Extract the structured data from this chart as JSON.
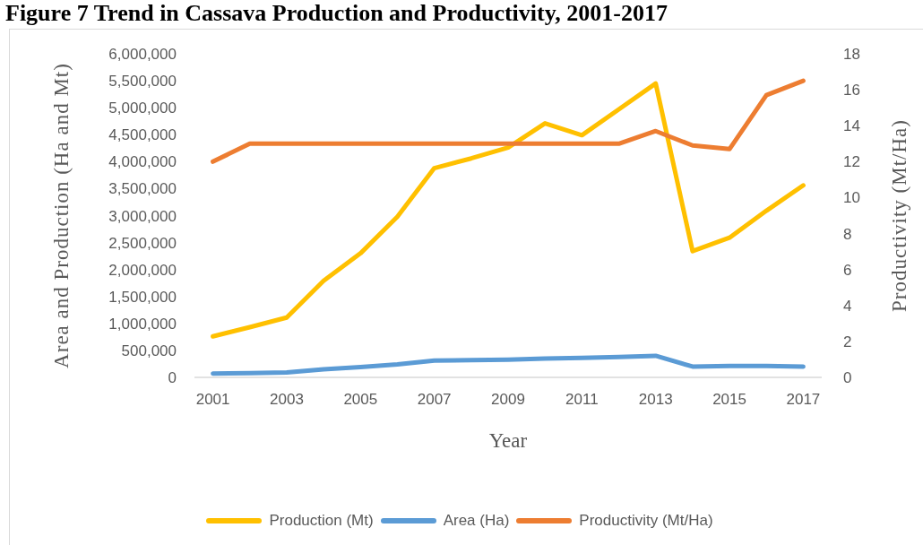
{
  "chart_data": {
    "type": "line",
    "title": "Figure 7 Trend in Cassava Production and Productivity, 2001-2017",
    "xlabel": "Year",
    "ylabel": "Area and Production (Ha and Mt)",
    "y2label": "Productivity (Mt/Ha)",
    "categories": [
      "2001",
      null,
      "2003",
      null,
      "2005",
      null,
      "2007",
      null,
      "2009",
      null,
      "2011",
      null,
      "2013",
      null,
      "2015",
      null,
      "2017"
    ],
    "series": [
      {
        "name": "Production (Mt)",
        "color": "#ffc000",
        "values": [
          760000,
          930000,
          1110000,
          1790000,
          2300000,
          2980000,
          3880000,
          4060000,
          4260000,
          4710000,
          4490000,
          4970000,
          5450000,
          2340000,
          2590000,
          3090000,
          3560000
        ]
      },
      {
        "name": "Area (Ha)",
        "color": "#5b9bd5",
        "values": [
          70000,
          80000,
          90000,
          150000,
          190000,
          240000,
          310000,
          320000,
          330000,
          350000,
          360000,
          380000,
          400000,
          200000,
          210000,
          210000,
          200000
        ]
      },
      {
        "name": "Productivity (Mt/Ha)",
        "color": "#ed7d31",
        "axis": "y2",
        "values": [
          12.0,
          13.0,
          13.0,
          13.0,
          13.0,
          13.0,
          13.0,
          13.0,
          13.0,
          13.0,
          13.0,
          13.0,
          13.7,
          12.9,
          12.7,
          15.7,
          16.5
        ]
      }
    ],
    "ylim": [
      0,
      6000000
    ],
    "yticks": [
      0,
      {
        "value": 500000,
        "label": "500,000"
      },
      {
        "value": 1000000,
        "label": "1,000,000"
      },
      {
        "value": 1500000,
        "label": "1,500,000"
      },
      {
        "value": 2000000,
        "label": "2,000,000"
      },
      {
        "value": 2500000,
        "label": "2,500,000"
      },
      {
        "value": 3000000,
        "label": "3,000,000"
      },
      {
        "value": 3500000,
        "label": "3,500,000"
      },
      {
        "value": 4000000,
        "label": "4,000,000"
      },
      {
        "value": 4500000,
        "label": "4,500,000"
      },
      {
        "value": 5000000,
        "label": "5,000,000"
      },
      {
        "value": 5500000,
        "label": "5,500,000"
      },
      {
        "value": 6000000,
        "label": "6,000,000"
      }
    ],
    "y2lim": [
      0,
      18
    ],
    "y2ticks": [
      0,
      2,
      4,
      6,
      8,
      10,
      12,
      14,
      16,
      18
    ],
    "legend": "bottom",
    "line_style": "solid"
  }
}
